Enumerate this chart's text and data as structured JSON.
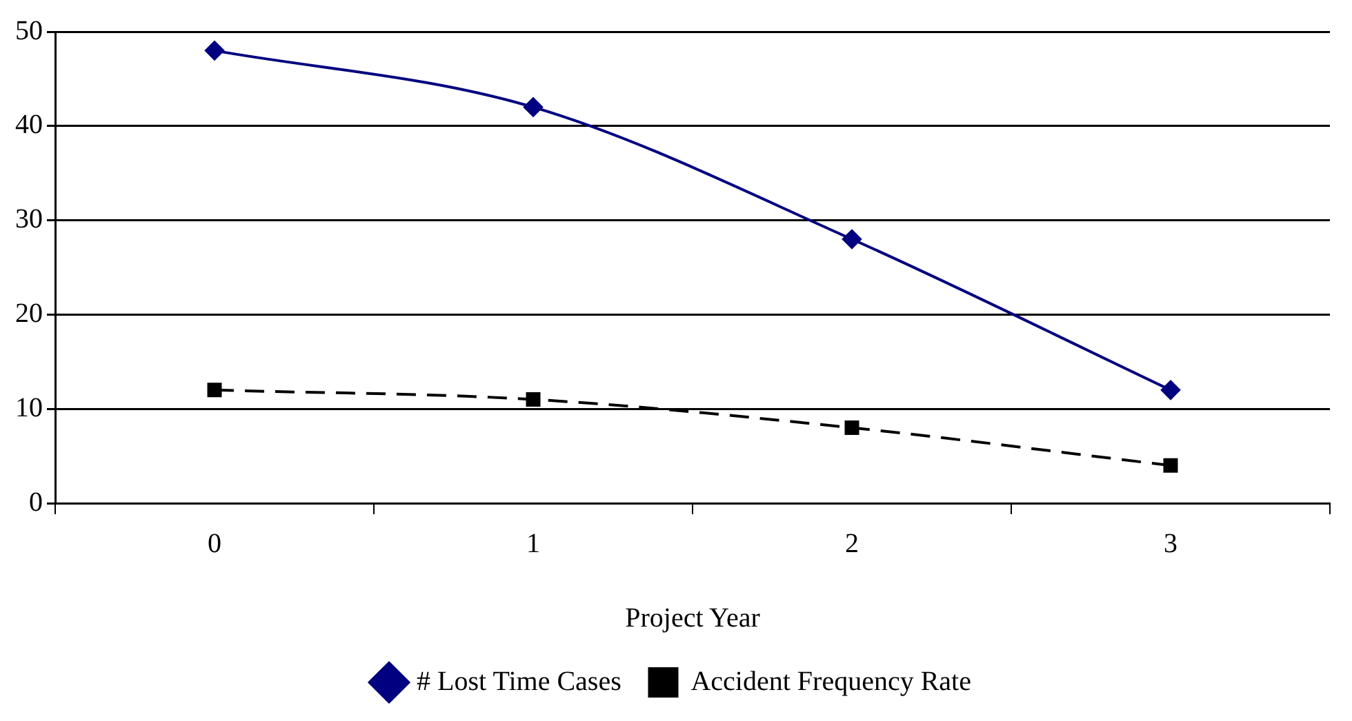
{
  "chart_data": {
    "type": "line",
    "xlabel": "Project Year",
    "categories": [
      "0",
      "1",
      "2",
      "3"
    ],
    "series": [
      {
        "name": "# Lost Time Cases",
        "color": "#000080",
        "values": [
          48,
          42,
          28,
          12
        ],
        "marker": "diamond",
        "line_style": "solid"
      },
      {
        "name": "Accident Frequency Rate",
        "color": "#000000",
        "values": [
          12,
          11,
          8,
          4
        ],
        "marker": "square",
        "line_style": "dashed"
      }
    ],
    "ylim": [
      0,
      50
    ],
    "yticks": [
      0,
      10,
      20,
      30,
      40,
      50
    ],
    "grid": "y",
    "legend": "bottom"
  }
}
